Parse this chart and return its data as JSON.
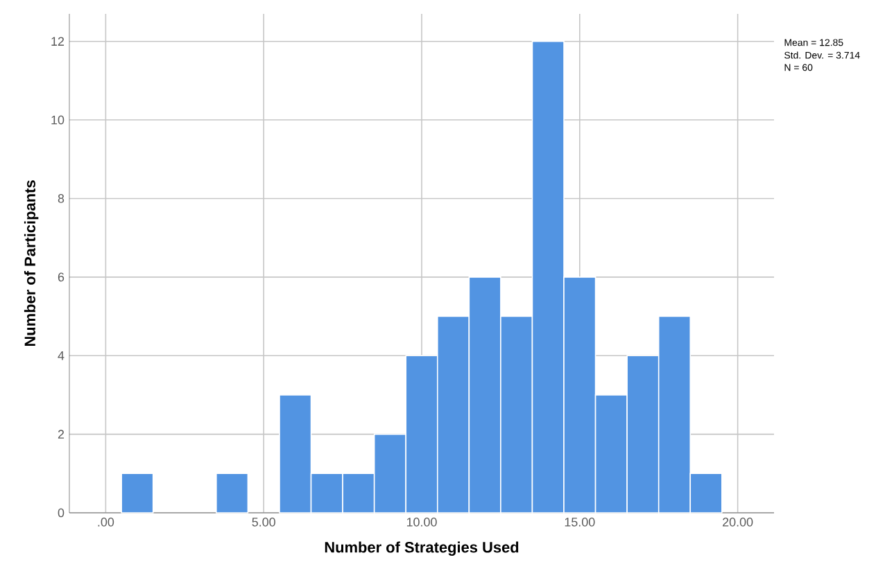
{
  "chart_data": {
    "type": "histogram",
    "xlabel": "Number of Strategies Used",
    "ylabel": "Number of Participants",
    "bins": [
      0.5,
      1.5,
      2.5,
      3.5,
      4.5,
      5.5,
      6.5,
      7.5,
      8.5,
      9.5,
      10.5,
      11.5,
      12.5,
      13.5,
      14.5,
      15.5,
      16.5,
      17.5,
      18.5,
      19.5
    ],
    "values": [
      1,
      0,
      0,
      1,
      0,
      3,
      1,
      1,
      2,
      4,
      5,
      6,
      5,
      12,
      6,
      3,
      4,
      5,
      1
    ],
    "color": "#5294e2",
    "xlim": [
      -1.15,
      21.15
    ],
    "ylim": [
      0,
      12.7
    ],
    "xticks": [
      {
        "value": 0,
        "label": ".00"
      },
      {
        "value": 5,
        "label": "5.00"
      },
      {
        "value": 10,
        "label": "10.00"
      },
      {
        "value": 15,
        "label": "15.00"
      },
      {
        "value": 20,
        "label": "20.00"
      }
    ],
    "yticks": [
      0,
      2,
      4,
      6,
      8,
      10,
      12
    ],
    "grid": true,
    "annotations": [
      "Mean = 12.85",
      "Std. Dev. = 3.714",
      "N = 60"
    ]
  }
}
